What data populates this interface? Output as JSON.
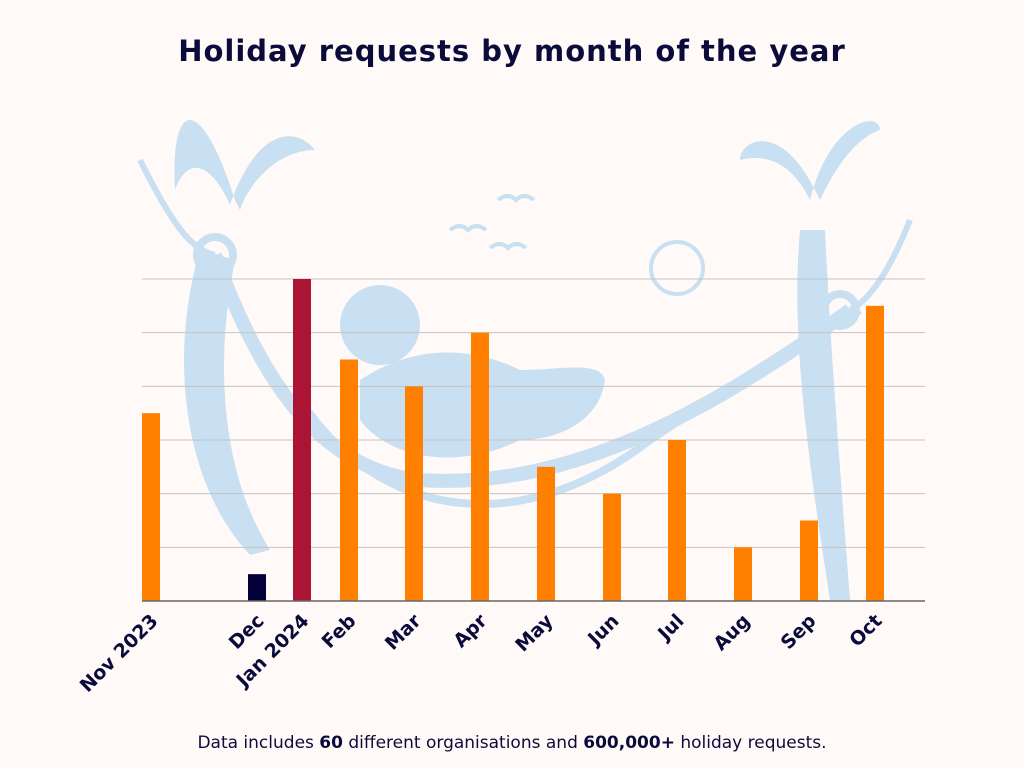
{
  "chart_data": {
    "type": "bar",
    "title": "Holiday requests by month of the year",
    "xlabel": "",
    "ylabel": "",
    "categories": [
      "Nov 2023",
      "Dec",
      "Jan 2024",
      "Feb",
      "Mar",
      "Apr",
      "May",
      "Jun",
      "Jul",
      "Aug",
      "Sep",
      "Oct"
    ],
    "values": [
      3.5,
      0.5,
      6,
      4.5,
      4,
      5,
      2.5,
      2,
      3,
      1,
      1.5,
      5.5
    ],
    "ylim": [
      0,
      6
    ],
    "y_tick_labels_shown": false,
    "grid": true,
    "bar_colors": [
      "#ff8000",
      "#03003a",
      "#ab1435",
      "#ff8000",
      "#ff8000",
      "#ff8000",
      "#ff8000",
      "#ff8000",
      "#ff8000",
      "#ff8000",
      "#ff8000",
      "#ff8000"
    ],
    "background_illustration_color": "#c9dff2"
  },
  "footer": {
    "prefix": "Data includes ",
    "orgs": "60",
    "middle": " different organisations and ",
    "requests": "600,000+",
    "suffix": " holiday requests."
  }
}
